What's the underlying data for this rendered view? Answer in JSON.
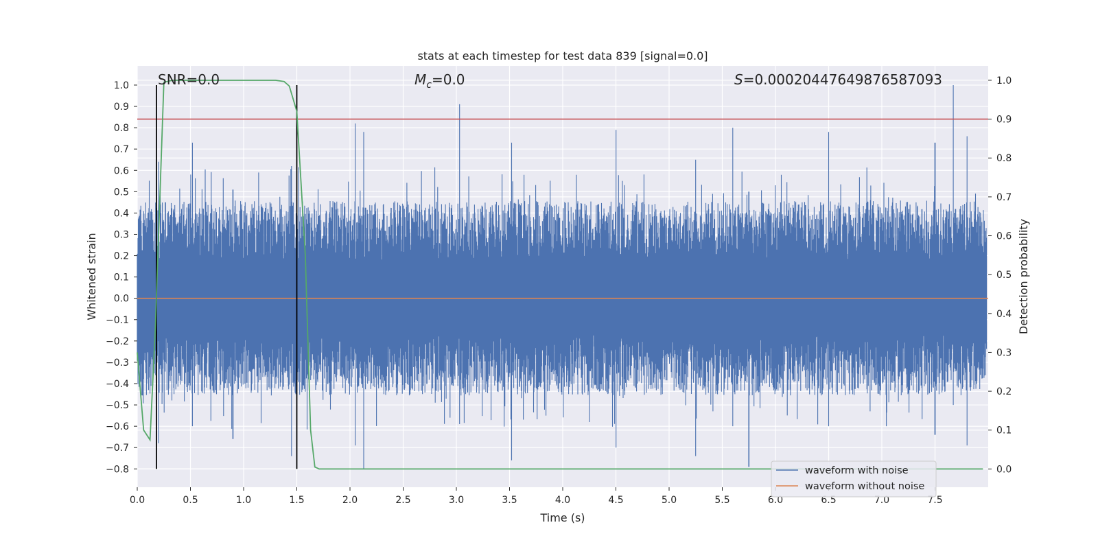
{
  "chart_data": {
    "type": "line",
    "title": "stats at each timestep for test data 839 [signal=0.0]",
    "xlabel": "Time (s)",
    "ylabel_left": "Whitened strain",
    "ylabel_right": "Detection probability",
    "xlim": [
      0.0,
      8.0
    ],
    "ylim_left": [
      -0.886,
      1.09
    ],
    "ylim_right": [
      -0.047,
      1.037
    ],
    "x_ticks": [
      "0.0",
      "0.5",
      "1.0",
      "1.5",
      "2.0",
      "2.5",
      "3.0",
      "3.5",
      "4.0",
      "4.5",
      "5.0",
      "5.5",
      "6.0",
      "6.5",
      "7.0",
      "7.5"
    ],
    "y_ticks_left": [
      "1.0",
      "0.9",
      "0.8",
      "0.7",
      "0.6",
      "0.5",
      "0.4",
      "0.3",
      "0.2",
      "0.1",
      "0.0",
      "−0.1",
      "−0.2",
      "−0.3",
      "−0.4",
      "−0.5",
      "−0.6",
      "−0.7",
      "−0.8"
    ],
    "y_ticks_right": [
      "1.0",
      "0.9",
      "0.8",
      "0.7",
      "0.6",
      "0.5",
      "0.4",
      "0.3",
      "0.2",
      "0.1",
      "0.0"
    ],
    "annotations": {
      "snr": "SNR=0.0",
      "mc_symbol": "M",
      "mc_sub": "c",
      "mc_value": "=0.0",
      "s_symbol": "S",
      "s_value": "=0.00020447649876587093"
    },
    "series": [
      {
        "name": "waveform with noise",
        "color": "#4c72b0",
        "axis": "left",
        "envelope_peaks": [
          {
            "x": 0.2,
            "max": 0.64,
            "min": -0.68
          },
          {
            "x": 0.52,
            "max": 0.73,
            "min": -0.6
          },
          {
            "x": 0.9,
            "max": 0.51,
            "min": -0.66
          },
          {
            "x": 1.45,
            "max": 0.62,
            "min": -0.74
          },
          {
            "x": 2.05,
            "max": 0.82,
            "min": -0.69
          },
          {
            "x": 2.13,
            "max": 0.78,
            "min": -0.8
          },
          {
            "x": 3.03,
            "max": 0.91,
            "min": -0.59
          },
          {
            "x": 3.52,
            "max": 0.73,
            "min": -0.76
          },
          {
            "x": 4.5,
            "max": 0.79,
            "min": -0.7
          },
          {
            "x": 5.25,
            "max": 0.65,
            "min": -0.74
          },
          {
            "x": 5.6,
            "max": 0.8,
            "min": -0.6
          },
          {
            "x": 5.75,
            "max": 0.5,
            "min": -0.79
          },
          {
            "x": 6.5,
            "max": 0.78,
            "min": -0.6
          },
          {
            "x": 7.5,
            "max": 0.73,
            "min": -0.64
          },
          {
            "x": 7.67,
            "max": 1.0,
            "min": -0.5
          },
          {
            "x": 7.8,
            "max": 0.76,
            "min": -0.69
          }
        ],
        "typical_amplitude": 0.38
      },
      {
        "name": "waveform without noise",
        "color": "#dd8452",
        "axis": "left",
        "x": [
          0.0,
          8.0
        ],
        "values": [
          0.0,
          0.0
        ]
      },
      {
        "name": "",
        "color": "#55a868",
        "axis": "right",
        "x": [
          0.0,
          0.06,
          0.12,
          0.17,
          0.25,
          0.33,
          0.5,
          0.75,
          1.0,
          1.25,
          1.3,
          1.38,
          1.43,
          1.5,
          1.58,
          1.63,
          1.67,
          1.71,
          1.75,
          2.0,
          3.0,
          4.0,
          5.0,
          6.0,
          7.0,
          7.95
        ],
        "values": [
          0.3,
          0.1,
          0.075,
          0.36,
          0.995,
          1.0,
          1.0,
          1.0,
          1.0,
          1.0,
          1.0,
          0.997,
          0.985,
          0.92,
          0.55,
          0.1,
          0.005,
          0.0,
          0.0,
          0.0,
          0.0,
          0.0,
          0.0,
          0.0,
          0.0,
          0.0
        ]
      }
    ],
    "threshold_line": {
      "axis": "right",
      "value": 0.9,
      "color": "#c44e52"
    },
    "vertical_markers": {
      "x": [
        0.18,
        1.5
      ],
      "y_from": -0.8,
      "y_to": 1.0,
      "color": "#000000"
    },
    "legend": {
      "placement": "lower-right",
      "entries": [
        "waveform with noise",
        "waveform without noise"
      ]
    },
    "grid": true,
    "style": {
      "background": "#eaeaf2",
      "grid_color": "#ffffff"
    }
  }
}
